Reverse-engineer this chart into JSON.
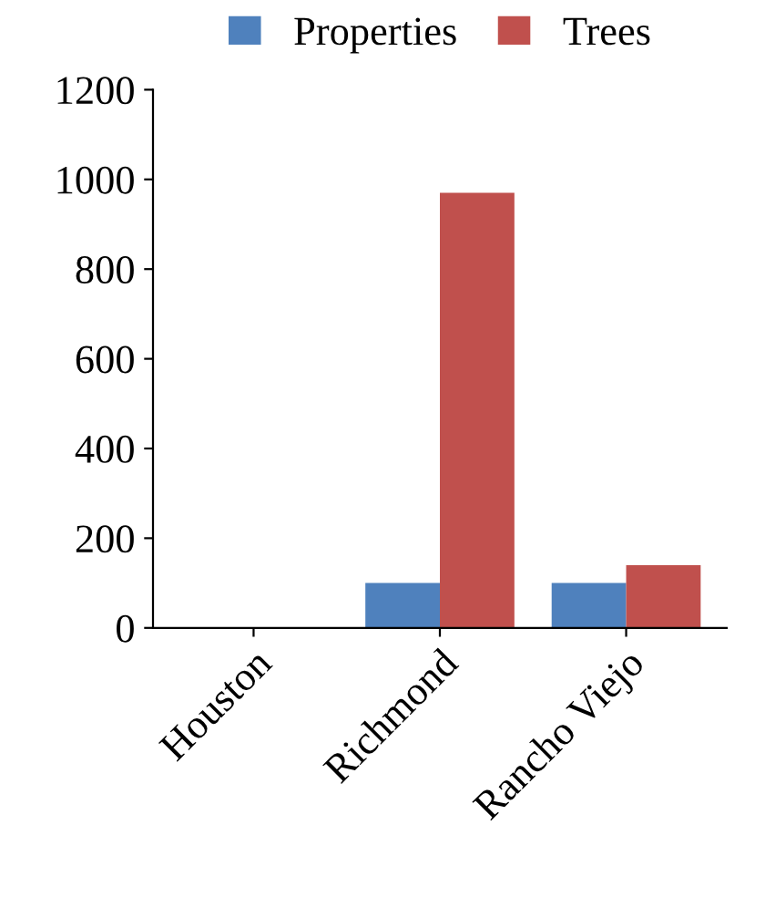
{
  "chart_data": {
    "type": "bar",
    "categories": [
      "Houston",
      "Richmond",
      "Rancho Viejo"
    ],
    "series": [
      {
        "name": "Properties",
        "color": "#4f81bd",
        "values": [
          0,
          100,
          100
        ]
      },
      {
        "name": "Trees",
        "color": "#c0504d",
        "values": [
          0,
          970,
          140
        ]
      }
    ],
    "ylim": [
      0,
      1200
    ],
    "yticks": [
      0,
      200,
      400,
      600,
      800,
      1000,
      1200
    ],
    "grid": false,
    "legend": "top"
  }
}
